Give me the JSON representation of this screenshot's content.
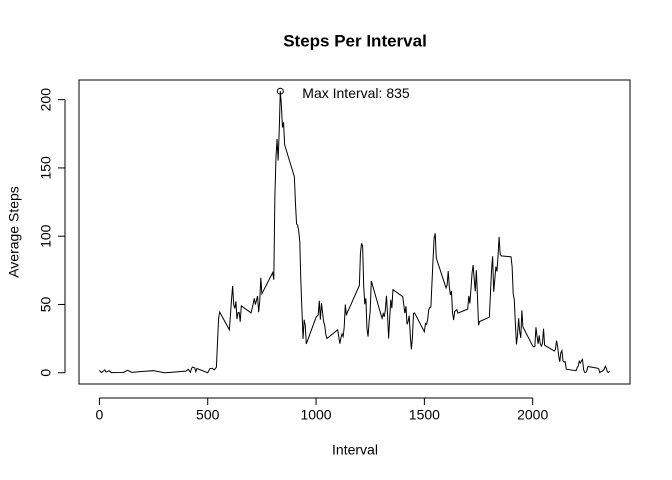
{
  "chart_data": {
    "type": "line",
    "title": "Steps Per Interval",
    "x_label": "Interval",
    "y_label": "Average Steps",
    "color": "#000000",
    "x": [
      0,
      10,
      25,
      30,
      45,
      55,
      110,
      130,
      150,
      210,
      250,
      300,
      320,
      400,
      410,
      420,
      425,
      430,
      440,
      445,
      450,
      500,
      510,
      520,
      530,
      540,
      550,
      555,
      600,
      610,
      615,
      620,
      625,
      630,
      635,
      640,
      645,
      650,
      655,
      700,
      710,
      715,
      720,
      730,
      735,
      740,
      745,
      750,
      800,
      805,
      810,
      815,
      820,
      825,
      830,
      835,
      840,
      845,
      850,
      855,
      900,
      905,
      910,
      915,
      920,
      925,
      930,
      935,
      940,
      945,
      950,
      955,
      1000,
      1010,
      1015,
      1020,
      1025,
      1030,
      1035,
      1040,
      1045,
      1050,
      1100,
      1110,
      1115,
      1120,
      1125,
      1130,
      1135,
      1140,
      1145,
      1150,
      1200,
      1205,
      1210,
      1215,
      1220,
      1225,
      1230,
      1235,
      1240,
      1245,
      1250,
      1255,
      1300,
      1305,
      1310,
      1315,
      1320,
      1325,
      1330,
      1335,
      1340,
      1345,
      1350,
      1355,
      1400,
      1410,
      1415,
      1420,
      1425,
      1430,
      1435,
      1440,
      1445,
      1450,
      1455,
      1500,
      1505,
      1510,
      1515,
      1520,
      1525,
      1530,
      1535,
      1540,
      1545,
      1550,
      1555,
      1600,
      1605,
      1610,
      1615,
      1620,
      1625,
      1630,
      1635,
      1640,
      1645,
      1650,
      1655,
      1700,
      1705,
      1710,
      1715,
      1720,
      1725,
      1730,
      1735,
      1740,
      1745,
      1750,
      1755,
      1800,
      1805,
      1810,
      1815,
      1820,
      1825,
      1830,
      1835,
      1840,
      1845,
      1850,
      1855,
      1900,
      1905,
      1910,
      1915,
      1920,
      1925,
      1930,
      1935,
      1940,
      1945,
      1950,
      1955,
      2000,
      2005,
      2010,
      2015,
      2020,
      2025,
      2030,
      2035,
      2040,
      2045,
      2050,
      2055,
      2100,
      2105,
      2110,
      2115,
      2120,
      2125,
      2130,
      2135,
      2140,
      2145,
      2150,
      2155,
      2200,
      2205,
      2210,
      2215,
      2220,
      2225,
      2230,
      2235,
      2240,
      2245,
      2250,
      2255,
      2300,
      2305,
      2310,
      2315,
      2320,
      2325,
      2330,
      2335,
      2340,
      2345,
      2350,
      2355
    ],
    "values": [
      1.7,
      0.1,
      2.1,
      0.5,
      1.5,
      0.1,
      0.2,
      1.8,
      0.3,
      1.1,
      1.5,
      0,
      0.2,
      1.2,
      2.6,
      0.3,
      3,
      4.1,
      3.5,
      0.8,
      3.1,
      0,
      3,
      3.3,
      2.1,
      4.1,
      39.5,
      44.5,
      31.5,
      53.8,
      63.5,
      50,
      47.1,
      52.2,
      39.3,
      44,
      44.2,
      37.4,
      49,
      43.8,
      50.5,
      54.5,
      49.9,
      56.2,
      44.3,
      52.3,
      69.5,
      57.8,
      73.4,
      68.2,
      129.4,
      157.5,
      171.2,
      155.4,
      177.3,
      206.2,
      195.9,
      179.6,
      183.4,
      167,
      143.5,
      124,
      109.1,
      108.1,
      103.7,
      95.9,
      66.2,
      45.2,
      24.8,
      38.8,
      35,
      21.1,
      40.6,
      42.4,
      52.7,
      38.9,
      50.8,
      44.3,
      37.4,
      34.7,
      28.3,
      25.1,
      31.4,
      21.3,
      25.5,
      28.4,
      26.5,
      33.4,
      50,
      42,
      44.6,
      46,
      63.9,
      87.6,
      94.8,
      92.8,
      63.4,
      50.2,
      54.5,
      32.4,
      26.5,
      37.7,
      45.1,
      67.3,
      42.3,
      39.9,
      43.3,
      41,
      46.2,
      56.4,
      42.8,
      25.1,
      40,
      53.5,
      47.3,
      60.8,
      55.8,
      43.6,
      48.7,
      35.5,
      37.5,
      41.8,
      27.5,
      17.1,
      26.1,
      43.6,
      43.8,
      30,
      36.1,
      35.5,
      38.8,
      46,
      47.8,
      48.1,
      65.3,
      82.9,
      98.7,
      102.1,
      84,
      62.1,
      64.1,
      74.5,
      63.2,
      56.9,
      59.8,
      43.9,
      38.6,
      44.7,
      45.5,
      46.2,
      43.7,
      46.6,
      56.3,
      50.7,
      61.2,
      72.7,
      78.9,
      68.9,
      59.7,
      75.1,
      56.5,
      34.8,
      37.5,
      40.7,
      58,
      74.7,
      85.3,
      59.3,
      67.8,
      77.7,
      74.2,
      85.3,
      99.5,
      86.6,
      85.6,
      84.9,
      77.8,
      58,
      53.4,
      36.3,
      20.7,
      27.4,
      40,
      30.2,
      25.5,
      45.7,
      33.5,
      19.6,
      19,
      19.3,
      33.3,
      26.8,
      21.2,
      27.3,
      21.3,
      19.5,
      21.3,
      32.3,
      20.2,
      15.9,
      17.2,
      23.5,
      19.2,
      12.5,
      8,
      14.7,
      16.3,
      8.7,
      7.8,
      8.1,
      2.6,
      1.5,
      3.7,
      4.8,
      8.5,
      7.1,
      8.7,
      9.8,
      2.2,
      0.3,
      0.1,
      1.6,
      4.6,
      3.3,
      2.8,
      0,
      0.8,
      1,
      1.6,
      2.6,
      4.7,
      3.3,
      0.6,
      0.2,
      1.1
    ],
    "xlim": [
      -94.2,
      2449.2
    ],
    "ylim": [
      -8.25,
      214.4
    ],
    "xticks": [
      0,
      500,
      1000,
      1500,
      2000
    ],
    "yticks": [
      0,
      50,
      100,
      150,
      200
    ],
    "annotation": {
      "text": "Max Interval:  835",
      "x": 835,
      "y": 206.2
    }
  }
}
